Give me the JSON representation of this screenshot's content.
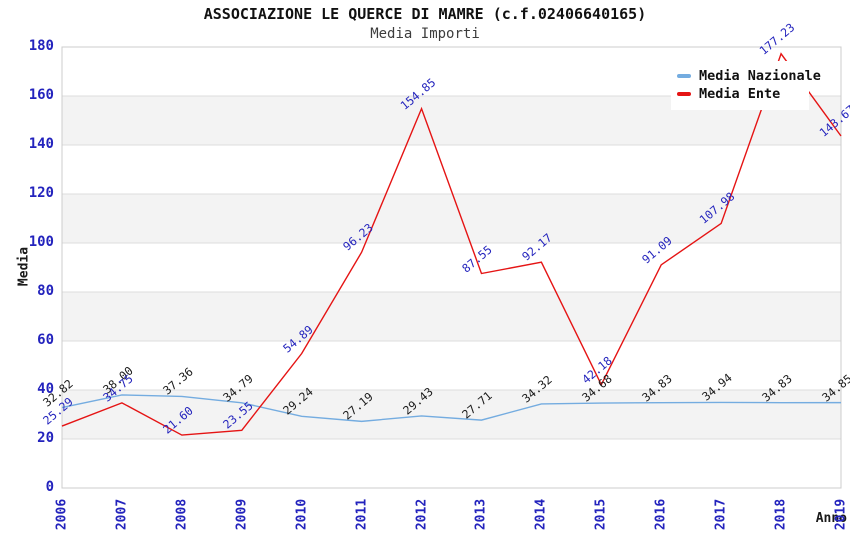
{
  "chart_data": {
    "type": "line",
    "title": "ASSOCIAZIONE LE QUERCE DI MAMRE (c.f.02406640165)",
    "subtitle": "Media Importi",
    "xlabel": "Anno",
    "ylabel": "Media",
    "categories": [
      "2006",
      "2007",
      "2008",
      "2009",
      "2010",
      "2011",
      "2012",
      "2013",
      "2014",
      "2015",
      "2016",
      "2017",
      "2018",
      "2019"
    ],
    "ylim": [
      0,
      180
    ],
    "ytick_step": 20,
    "yticks": [
      0,
      20,
      40,
      60,
      80,
      100,
      120,
      140,
      160,
      180
    ],
    "grid": "horizontal gridlines with alternating shaded bands",
    "legend_position": "top-right",
    "series": [
      {
        "name": "Media Nazionale",
        "color": "#74ace0",
        "label_color": "#1a1a1a",
        "values": [
          32.82,
          38.0,
          37.36,
          34.79,
          29.24,
          27.19,
          29.43,
          27.71,
          34.32,
          34.68,
          34.83,
          34.94,
          34.83,
          34.85
        ]
      },
      {
        "name": "Media Ente",
        "color": "#e51414",
        "label_color": "#2424bd",
        "values": [
          25.29,
          34.75,
          21.6,
          23.55,
          54.89,
          96.23,
          154.85,
          87.55,
          92.17,
          42.18,
          91.09,
          107.98,
          177.23,
          143.67
        ]
      }
    ]
  },
  "colors": {
    "tick_label": "#2323bd",
    "grid_band": "#f3f3f3",
    "grid_line": "#dedede",
    "plot_border": "#cccccc",
    "title_text": "#111111",
    "subtitle_text": "#3d3d3d",
    "legend_bg": "#ffffff"
  }
}
